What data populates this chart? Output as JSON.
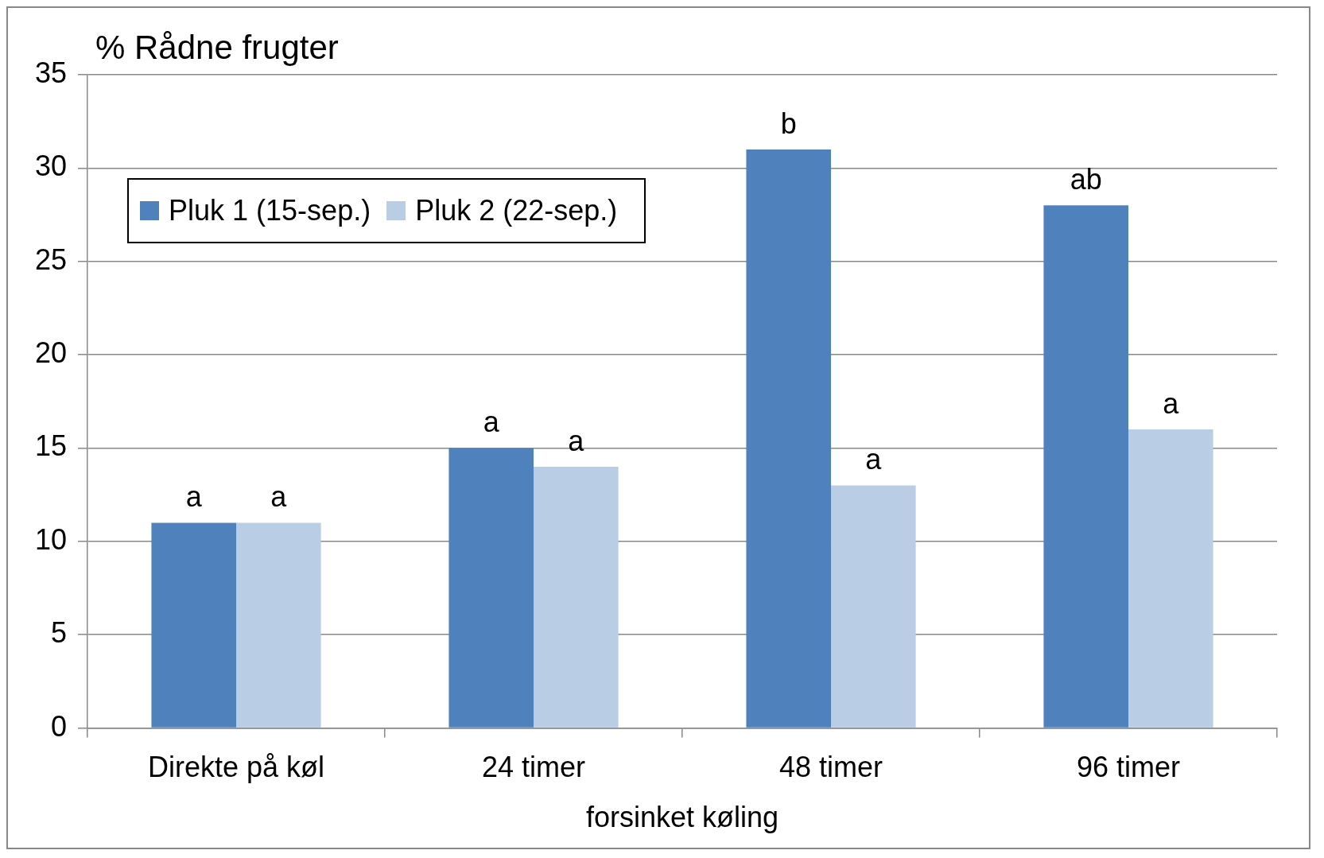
{
  "chart_data": {
    "type": "bar",
    "title": "% Rådne frugter",
    "xlabel": "forsinket køling",
    "categories": [
      "Direkte på køl",
      "24 timer",
      "48 timer",
      "96 timer"
    ],
    "series": [
      {
        "name": "Pluk 1 (15-sep.)",
        "color": "#4f81bd",
        "values": [
          11,
          15,
          31,
          28
        ],
        "value_labels": [
          "a",
          "a",
          "b",
          "ab"
        ]
      },
      {
        "name": "Pluk 2 (22-sep.)",
        "color": "#b9cde5",
        "values": [
          11,
          14,
          13,
          16
        ],
        "value_labels": [
          "a",
          "a",
          "a",
          "a"
        ]
      }
    ],
    "ylim": [
      0,
      35
    ],
    "yticks": [
      0,
      5,
      10,
      15,
      20,
      25,
      30,
      35
    ],
    "grid": "y",
    "legend": "top left"
  }
}
